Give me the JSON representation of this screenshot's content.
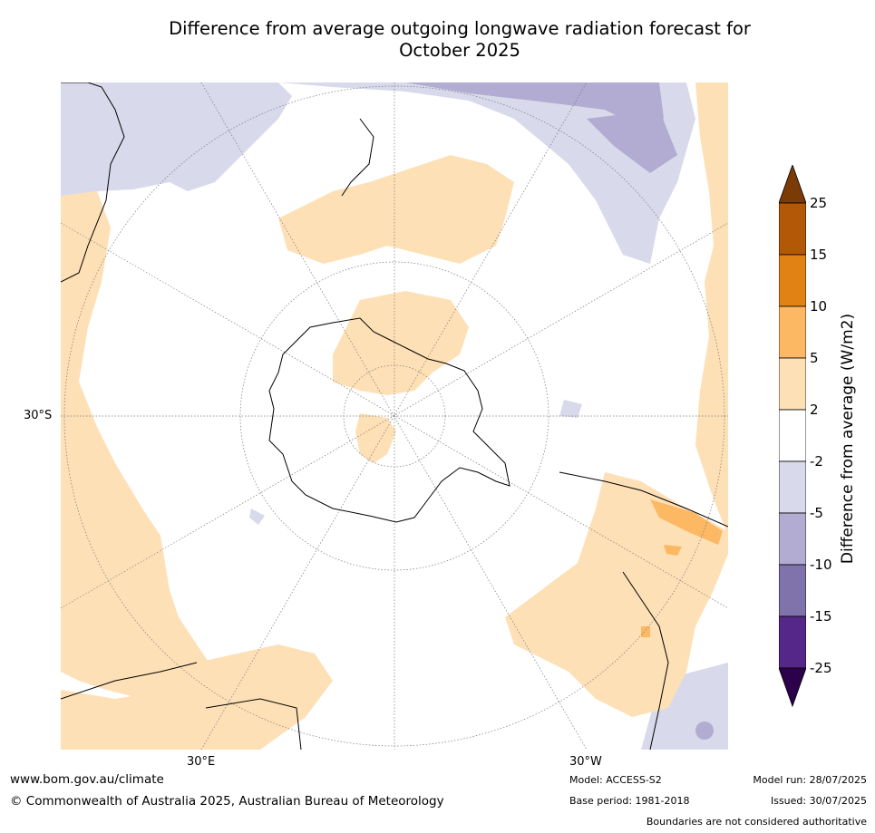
{
  "title": "Difference from average outgoing longwave radiation forecast for\nOctober 2025",
  "map": {
    "projection": "south polar stereographic",
    "lat_label": "30°S",
    "lon_labels": [
      "30°E",
      "30°W"
    ],
    "legend": {
      "label": "Difference from average (W/m2)",
      "ticks": [
        "25",
        "15",
        "10",
        "5",
        "2",
        "-2",
        "-5",
        "-10",
        "-15",
        "-25"
      ],
      "colors": [
        "#7a3b06",
        "#b35806",
        "#e08214",
        "#fdb863",
        "#fee0b6",
        "#ffffff",
        "#d8daeb",
        "#b2abd2",
        "#8073ac",
        "#542788",
        "#2d004b"
      ]
    }
  },
  "footer": {
    "url": "www.bom.gov.au/climate",
    "copyright": "© Commonwealth of Australia 2025, Australian Bureau of Meteorology",
    "model": "Model: ACCESS-S2",
    "base_period": "Base period: 1981-2018",
    "model_run": "Model run: 28/07/2025",
    "issued": "Issued: 30/07/2025",
    "disclaimer": "Boundaries are not considered authoritative"
  }
}
